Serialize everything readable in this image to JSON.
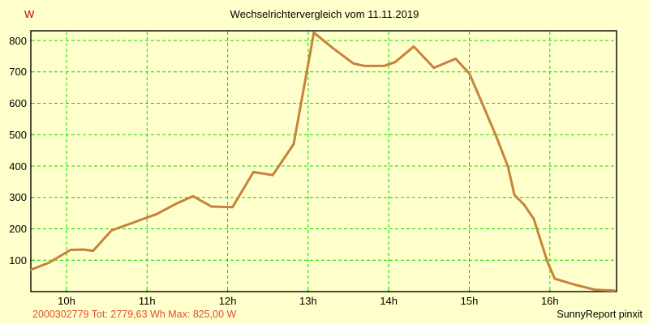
{
  "title": "Wechselrichtervergleich vom 11.11.2019",
  "y_axis": {
    "unit_label": "W",
    "tick_values": [
      100,
      200,
      300,
      400,
      500,
      600,
      700,
      800
    ]
  },
  "x_axis": {
    "tick_labels": [
      "10h",
      "11h",
      "12h",
      "13h",
      "14h",
      "15h",
      "16h"
    ],
    "tick_hours": [
      10,
      11,
      12,
      13,
      14,
      15,
      16
    ]
  },
  "footer": {
    "summary": "2000302779 Tot: 2779,63 Wh Max: 825,00 W",
    "credit": "SunnyReport pinxit"
  },
  "colors": {
    "background": "#FFFFCC",
    "grid": "#00DC00",
    "axis": "#000000",
    "line": "#C8823C",
    "unit_label": "#BB0000",
    "summary_text": "#DC5032"
  },
  "chart_data": {
    "type": "line",
    "title": "Wechselrichtervergleich vom 11.11.2019",
    "xlabel": "",
    "ylabel": "W",
    "x_tick_labels": [
      "10h",
      "11h",
      "12h",
      "13h",
      "14h",
      "15h",
      "16h"
    ],
    "x_tick_hours": [
      10,
      11,
      12,
      13,
      14,
      15,
      16
    ],
    "y_ticks": [
      100,
      200,
      300,
      400,
      500,
      600,
      700,
      800
    ],
    "ylim": [
      0,
      831
    ],
    "xlim_hours": [
      9.53,
      16.84
    ],
    "grid": true,
    "legend": "none",
    "series": [
      {
        "name": "2000302779",
        "total_wh_label": "2779,63",
        "max_w_label": "825,00",
        "points_time_hours_vs_watts": [
          [
            9.55,
            70
          ],
          [
            9.78,
            92
          ],
          [
            10.05,
            133
          ],
          [
            10.21,
            134
          ],
          [
            10.33,
            130
          ],
          [
            10.56,
            195
          ],
          [
            10.81,
            218
          ],
          [
            11.02,
            238
          ],
          [
            11.12,
            247
          ],
          [
            11.36,
            280
          ],
          [
            11.57,
            304
          ],
          [
            11.8,
            271
          ],
          [
            12.06,
            269
          ],
          [
            12.32,
            381
          ],
          [
            12.56,
            371
          ],
          [
            12.82,
            470
          ],
          [
            13.07,
            825
          ],
          [
            13.31,
            775
          ],
          [
            13.56,
            727
          ],
          [
            13.7,
            719
          ],
          [
            13.94,
            719
          ],
          [
            14.08,
            731
          ],
          [
            14.31,
            781
          ],
          [
            14.56,
            713
          ],
          [
            14.83,
            742
          ],
          [
            15.0,
            695
          ],
          [
            15.16,
            600
          ],
          [
            15.33,
            497
          ],
          [
            15.48,
            398
          ],
          [
            15.56,
            308
          ],
          [
            15.68,
            277
          ],
          [
            15.8,
            232
          ],
          [
            15.97,
            95
          ],
          [
            16.06,
            41
          ],
          [
            16.31,
            22
          ],
          [
            16.56,
            6
          ],
          [
            16.8,
            3
          ]
        ]
      }
    ]
  }
}
